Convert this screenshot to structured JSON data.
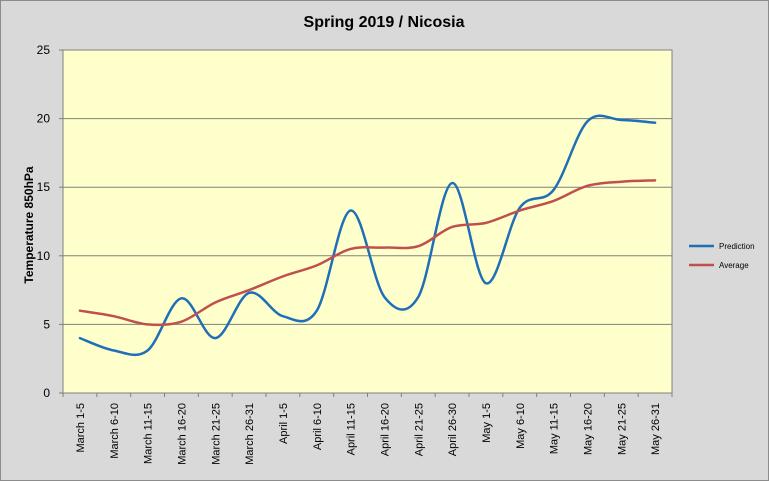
{
  "chart_data": {
    "type": "line",
    "title": "Spring 2019 / Nicosia",
    "ylabel": "Temperature 850hPa",
    "xlabel": "",
    "ylim": [
      0,
      25
    ],
    "yticks": [
      0,
      5,
      10,
      15,
      20,
      25
    ],
    "grid": true,
    "legend_position": "right",
    "categories": [
      "March 1-5",
      "March 6-10",
      "March 11-15",
      "March 16-20",
      "March 21-25",
      "March 26-31",
      "April 1-5",
      "April 6-10",
      "April 11-15",
      "April 16-20",
      "April 21-25",
      "April 26-30",
      "May 1-5",
      "May 6-10",
      "May 11-15",
      "May 16-20",
      "May 21-25",
      "May 26-31"
    ],
    "series": [
      {
        "name": "Prediction",
        "color": "#1f6fb8",
        "values": [
          4.0,
          3.1,
          3.1,
          6.9,
          4.0,
          7.3,
          5.6,
          6.0,
          13.3,
          7.0,
          7.0,
          15.3,
          8.0,
          13.5,
          14.8,
          19.8,
          19.9,
          19.7
        ]
      },
      {
        "name": "Average",
        "color": "#c0504d",
        "values": [
          6.0,
          5.6,
          5.0,
          5.2,
          6.6,
          7.5,
          8.5,
          9.3,
          10.5,
          10.6,
          10.7,
          12.1,
          12.4,
          13.3,
          14.0,
          15.1,
          15.4,
          15.5
        ]
      }
    ]
  }
}
